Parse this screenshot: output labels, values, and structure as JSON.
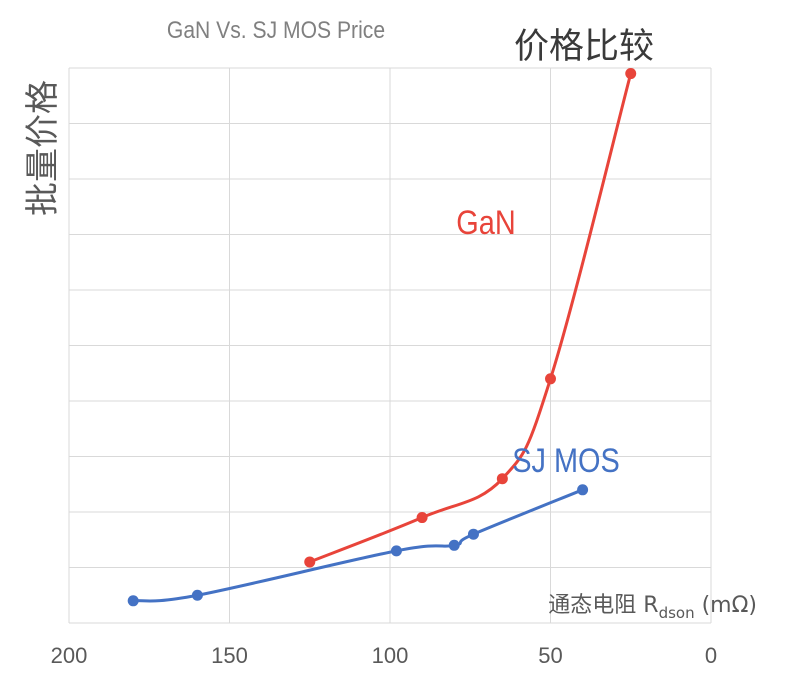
{
  "chart_data": {
    "type": "line",
    "title": "GaN Vs. SJ MOS Price",
    "subtitle": "价格比较",
    "xlabel": "通态电阻 R",
    "xlabel_sub": "dson",
    "xlabel_unit": " (mΩ)",
    "ylabel": "批量价格",
    "xlim": [
      200,
      0
    ],
    "x_reversed": true,
    "x_ticks": [
      200,
      150,
      100,
      50,
      0
    ],
    "ylim": [
      0,
      10
    ],
    "y_grid_count": 10,
    "grid": true,
    "series": [
      {
        "name": "GaN",
        "color": "#e8443a",
        "x": [
          125,
          90,
          65,
          50,
          25
        ],
        "y": [
          1.1,
          1.9,
          2.6,
          4.4,
          9.9
        ]
      },
      {
        "name": "SJ MOS",
        "color": "#4472c4",
        "x": [
          180,
          160,
          98,
          80,
          74,
          40
        ],
        "y": [
          0.4,
          0.5,
          1.3,
          1.4,
          1.6,
          2.4
        ]
      }
    ],
    "colors": {
      "grid": "#d9d9d9",
      "tick_text": "#595959",
      "title_text": "#808080",
      "subtitle_text": "#3a3a3a",
      "ylabel_text": "#595959"
    }
  }
}
